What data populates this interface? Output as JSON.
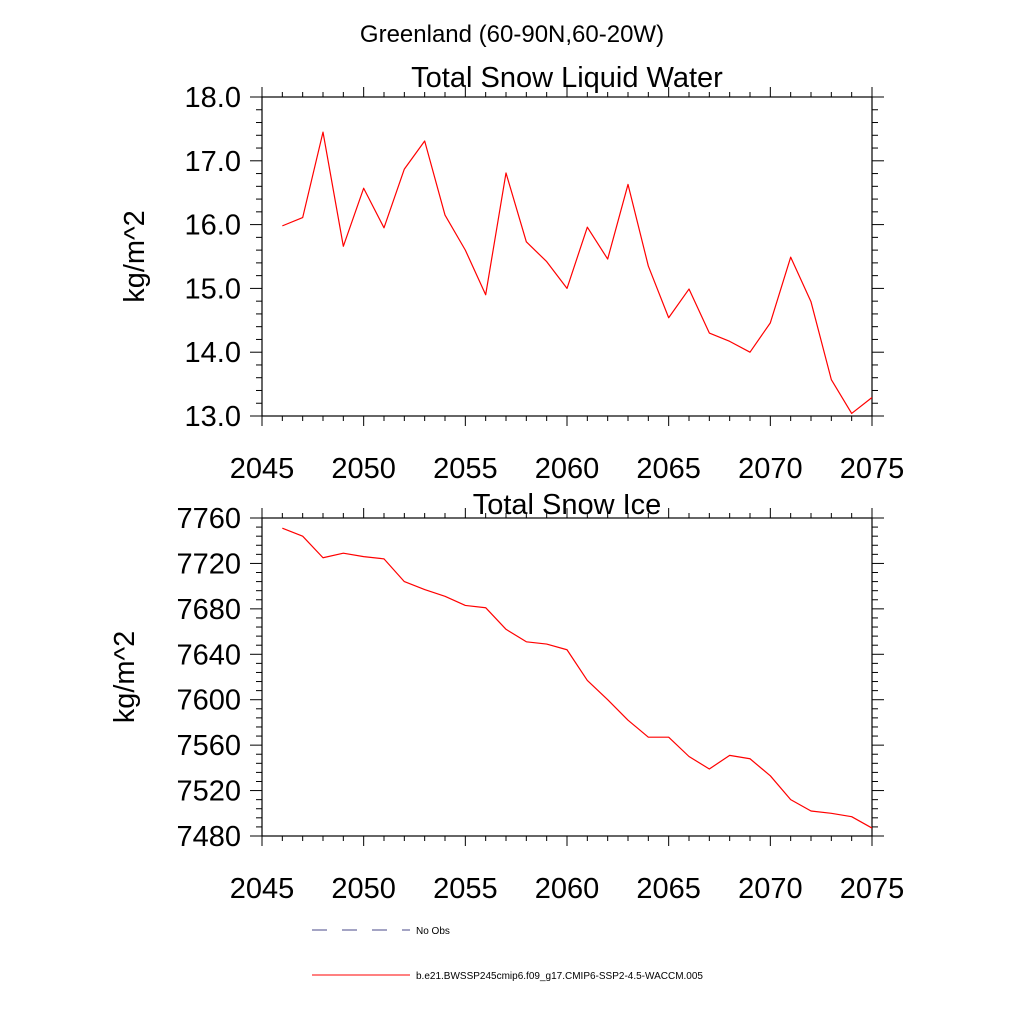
{
  "page_title": "Greenland (60-90N,60-20W)",
  "colors": {
    "series": "#ff0000",
    "obs": "#4a4a8a",
    "axis": "#000000"
  },
  "legend": [
    {
      "label": "No Obs",
      "style": "dashed",
      "color": "#4a4a8a"
    },
    {
      "label": "b.e21.BWSSP245cmip6.f09_g17.CMIP6-SSP2-4.5-WACCM.005",
      "style": "solid",
      "color": "#ff0000"
    }
  ],
  "chart_data": [
    {
      "type": "line",
      "title": "Total Snow Liquid Water",
      "xlabel": "",
      "ylabel": "kg/m^2",
      "xlim": [
        2045,
        2075
      ],
      "ylim": [
        13.0,
        18.0
      ],
      "xticks": [
        2045,
        2050,
        2055,
        2060,
        2065,
        2070,
        2075
      ],
      "xtick_labels": [
        "2045",
        "2050",
        "2055",
        "2060",
        "2065",
        "2070",
        "2075"
      ],
      "yticks": [
        13,
        14,
        15,
        16,
        17,
        18
      ],
      "ytick_labels": [
        "13.0",
        "14.0",
        "15.0",
        "16.0",
        "17.0",
        "18.0"
      ],
      "grid": false,
      "x": [
        2046,
        2047,
        2048,
        2049,
        2050,
        2051,
        2052,
        2053,
        2054,
        2055,
        2056,
        2057,
        2058,
        2059,
        2060,
        2061,
        2062,
        2063,
        2064,
        2065,
        2066,
        2067,
        2068,
        2069,
        2070,
        2071,
        2072,
        2073,
        2074,
        2075
      ],
      "series": [
        {
          "name": "b.e21.BWSSP245cmip6.f09_g17.CMIP6-SSP2-4.5-WACCM.005",
          "values": [
            15.98,
            16.11,
            17.45,
            15.66,
            16.57,
            15.95,
            16.87,
            17.31,
            16.15,
            15.6,
            14.9,
            16.81,
            15.73,
            15.42,
            15.0,
            15.96,
            15.46,
            16.63,
            15.35,
            14.54,
            14.99,
            14.3,
            14.17,
            14.0,
            14.46,
            15.49,
            14.79,
            13.57,
            13.04,
            13.29
          ]
        }
      ]
    },
    {
      "type": "line",
      "title": "Total Snow Ice",
      "xlabel": "",
      "ylabel": "kg/m^2",
      "xlim": [
        2045,
        2075
      ],
      "ylim": [
        7480,
        7760
      ],
      "xticks": [
        2045,
        2050,
        2055,
        2060,
        2065,
        2070,
        2075
      ],
      "xtick_labels": [
        "2045",
        "2050",
        "2055",
        "2060",
        "2065",
        "2070",
        "2075"
      ],
      "yticks": [
        7480,
        7520,
        7560,
        7600,
        7640,
        7680,
        7720,
        7760
      ],
      "ytick_labels": [
        "7480",
        "7520",
        "7560",
        "7600",
        "7640",
        "7680",
        "7720",
        "7760"
      ],
      "grid": false,
      "x": [
        2046,
        2047,
        2048,
        2049,
        2050,
        2051,
        2052,
        2053,
        2054,
        2055,
        2056,
        2057,
        2058,
        2059,
        2060,
        2061,
        2062,
        2063,
        2064,
        2065,
        2066,
        2067,
        2068,
        2069,
        2070,
        2071,
        2072,
        2073,
        2074,
        2075
      ],
      "series": [
        {
          "name": "b.e21.BWSSP245cmip6.f09_g17.CMIP6-SSP2-4.5-WACCM.005",
          "values": [
            7751,
            7744,
            7725,
            7729,
            7726,
            7724,
            7704,
            7697,
            7691,
            7683,
            7681,
            7662,
            7651,
            7649,
            7644,
            7617,
            7600,
            7582,
            7567,
            7567,
            7550,
            7539,
            7551,
            7548,
            7533,
            7512,
            7502,
            7500,
            7497,
            7487
          ]
        }
      ]
    }
  ]
}
